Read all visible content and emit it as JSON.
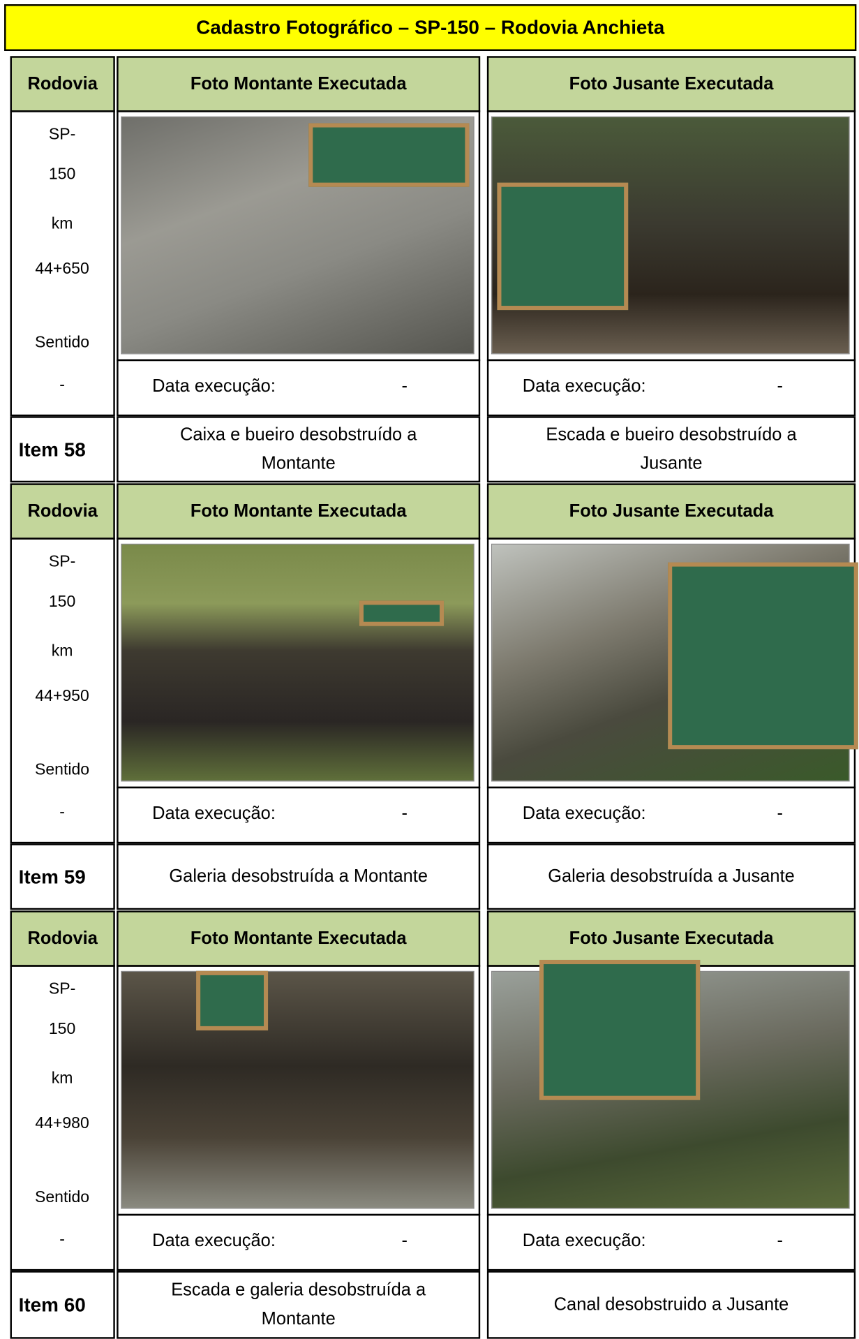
{
  "title": "Cadastro Fotográfico – SP-150 – Rodovia Anchieta",
  "blocks": [
    {
      "headers": [
        "Rodovia",
        "Foto Montante Executada",
        "Foto Jusante Executada"
      ],
      "location": [
        "SP-",
        "150",
        "km",
        "44+650",
        "Sentido",
        "-"
      ],
      "dates": [
        {
          "label": "Data execução:",
          "value": "-"
        },
        {
          "label": "Data execução:",
          "value": "-"
        }
      ],
      "item": "Item 58",
      "descriptions": [
        "Caixa e bueiro desobstruído a Montante",
        "Escada e bueiro desobstruído a Jusante"
      ]
    },
    {
      "headers": [
        "Rodovia",
        "Foto Montante Executada",
        "Foto Jusante Executada"
      ],
      "location": [
        "SP-",
        "150",
        "km",
        "44+950",
        "Sentido",
        "-"
      ],
      "dates": [
        {
          "label": "Data execução:",
          "value": "-"
        },
        {
          "label": "Data execução:",
          "value": "-"
        }
      ],
      "item": "Item 59",
      "descriptions": [
        "Galeria desobstruída a Montante",
        "Galeria desobstruída a Jusante"
      ]
    },
    {
      "headers": [
        "Rodovia",
        "Foto Montante Executada",
        "Foto Jusante Executada"
      ],
      "location": [
        "SP-",
        "150",
        "km",
        "44+980",
        "Sentido",
        "-"
      ],
      "dates": [
        {
          "label": "Data execução:",
          "value": "-"
        },
        {
          "label": "Data execução:",
          "value": "-"
        }
      ],
      "item": "Item 60",
      "descriptions": [
        "Escada e galeria desobstruída a Montante",
        "Canal desobstruido a Jusante"
      ]
    }
  ]
}
